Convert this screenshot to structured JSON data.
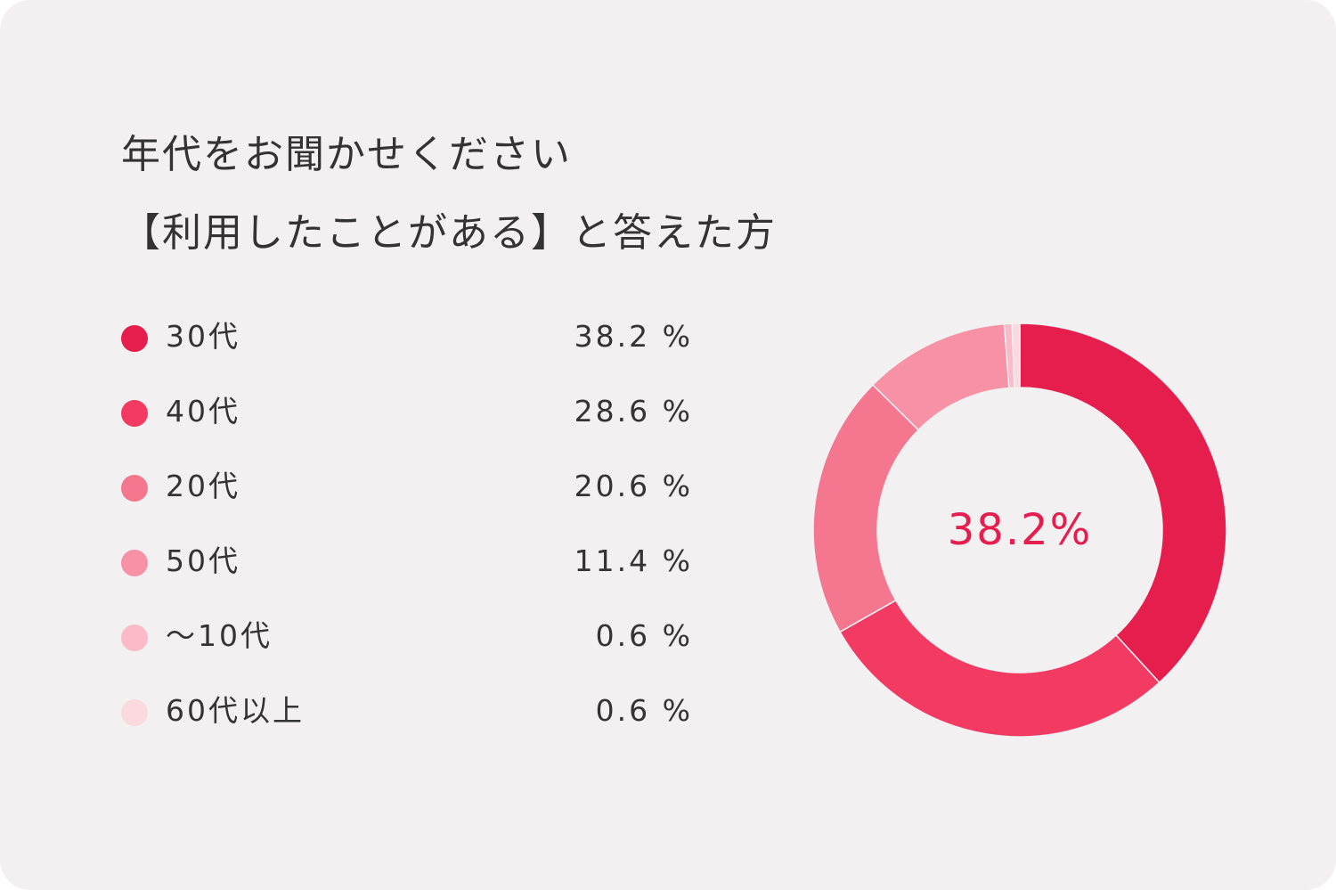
{
  "title": {
    "line1": "年代をお聞かせください",
    "line2": "【利用したことがある】と答えた方"
  },
  "center_label": "38.2%",
  "chart_data": {
    "type": "pie",
    "title": "年代をお聞かせください 【利用したことがある】と答えた方",
    "categories": [
      "30代",
      "40代",
      "20代",
      "50代",
      "～10代",
      "60代以上"
    ],
    "values": [
      38.2,
      28.6,
      20.6,
      11.4,
      0.6,
      0.6
    ],
    "value_labels": [
      "38.2 %",
      "28.6 %",
      "20.6 %",
      "11.4 %",
      "0.6 %",
      "0.6 %"
    ],
    "colors": [
      "#e61e4d",
      "#f23a63",
      "#f4778f",
      "#f791a6",
      "#fabac8",
      "#fad9df"
    ],
    "legend": "left",
    "donut": true,
    "center_text": "38.2%"
  }
}
